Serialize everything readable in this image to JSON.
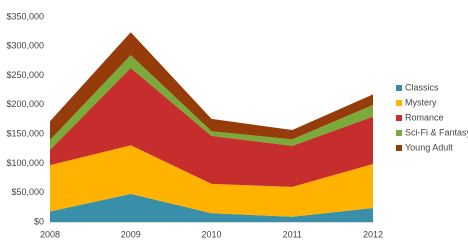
{
  "chart_data": {
    "type": "stacked-area",
    "categories": [
      "2008",
      "2009",
      "2010",
      "2011",
      "2012"
    ],
    "series": [
      {
        "name": "Classics",
        "color": "#3a8fa8",
        "values": [
          18000,
          48000,
          15000,
          9000,
          24000
        ]
      },
      {
        "name": "Mystery",
        "color": "#ffb300",
        "values": [
          79000,
          83000,
          50000,
          51000,
          75000
        ]
      },
      {
        "name": "Romance",
        "color": "#c62d2d",
        "values": [
          26000,
          132000,
          82000,
          70000,
          81000
        ]
      },
      {
        "name": "Sci-Fi & Fantasy",
        "color": "#79aa3a",
        "values": [
          17000,
          22000,
          8000,
          11000,
          20000
        ]
      },
      {
        "name": "Young Adult",
        "color": "#963c0b",
        "values": [
          32000,
          39000,
          21000,
          16000,
          18000
        ]
      }
    ],
    "ylim": [
      0,
      350000
    ],
    "yticks": [
      {
        "value": 0,
        "label": "$0"
      },
      {
        "value": 50000,
        "label": "$50,000"
      },
      {
        "value": 100000,
        "label": "$100,000"
      },
      {
        "value": 150000,
        "label": "$150,000"
      },
      {
        "value": 200000,
        "label": "$200,000"
      },
      {
        "value": 250000,
        "label": "$250,000"
      },
      {
        "value": 300000,
        "label": "$300,000"
      },
      {
        "value": 350000,
        "label": "$350,000"
      }
    ],
    "grid": false,
    "legend": "right"
  }
}
